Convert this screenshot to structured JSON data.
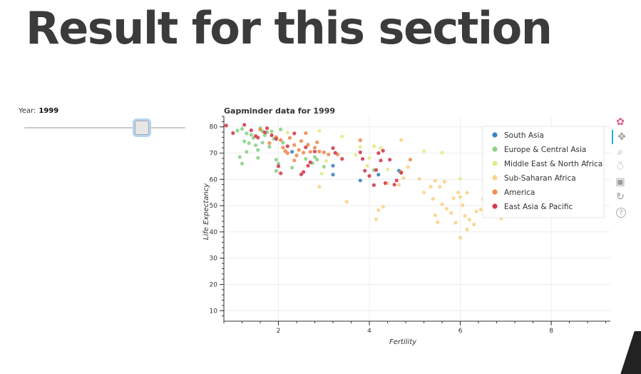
{
  "page": {
    "heading": "Result for this section"
  },
  "slider": {
    "label": "Year:",
    "value": "1999",
    "fraction": 0.725
  },
  "toolbar": [
    {
      "icon": "bokeh-logo-icon"
    },
    {
      "icon": "pan-icon",
      "active": true
    },
    {
      "icon": "box-zoom-icon"
    },
    {
      "icon": "wheel-zoom-icon"
    },
    {
      "icon": "save-icon"
    },
    {
      "icon": "reset-icon"
    },
    {
      "icon": "help-icon"
    }
  ],
  "chart_data": {
    "type": "scatter",
    "title": "Gapminder data for 1999",
    "xlabel": "Fertility",
    "ylabel": "Life Expectancy",
    "xlim": [
      0.8,
      9.3
    ],
    "ylim": [
      6,
      84
    ],
    "xticks": [
      2,
      4,
      6,
      8
    ],
    "yticks": [
      10,
      20,
      30,
      40,
      50,
      60,
      70,
      80
    ],
    "grid": true,
    "legend_position": "top-right",
    "series": [
      {
        "name": "South Asia",
        "color": "#3a84c2",
        "points": [
          [
            2.3,
            70.5
          ],
          [
            3.2,
            65.2
          ],
          [
            3.2,
            61.8
          ],
          [
            3.8,
            59.6
          ],
          [
            4.2,
            61.8
          ],
          [
            4.65,
            63.3
          ]
        ]
      },
      {
        "name": "Europe & Central Asia",
        "color": "#8ed08a",
        "points": [
          [
            1.1,
            78.6
          ],
          [
            1.2,
            79.2
          ],
          [
            1.3,
            77.5
          ],
          [
            1.25,
            74.5
          ],
          [
            1.3,
            70.5
          ],
          [
            1.15,
            68.5
          ],
          [
            1.4,
            77.0
          ],
          [
            1.45,
            75.8
          ],
          [
            1.5,
            73.0
          ],
          [
            1.55,
            71.2
          ],
          [
            1.6,
            79.5
          ],
          [
            1.65,
            74.0
          ],
          [
            1.7,
            76.8
          ],
          [
            1.75,
            77.9
          ],
          [
            1.8,
            72.4
          ],
          [
            1.85,
            78.3
          ],
          [
            1.9,
            75.5
          ],
          [
            1.95,
            67.5
          ],
          [
            2.0,
            66.0
          ],
          [
            2.05,
            79.0
          ],
          [
            1.2,
            66.0
          ],
          [
            1.35,
            73.8
          ],
          [
            1.55,
            68.2
          ],
          [
            1.65,
            78.3
          ],
          [
            2.1,
            74.0
          ],
          [
            2.3,
            64.5
          ],
          [
            1.95,
            63.2
          ],
          [
            2.6,
            67.8
          ],
          [
            2.8,
            68.5
          ],
          [
            2.85,
            67.5
          ],
          [
            2.75,
            66.2
          ],
          [
            3.0,
            64.8
          ],
          [
            4.1,
            63.5
          ]
        ]
      },
      {
        "name": "Middle East & North Africa",
        "color": "#e3eb8b",
        "points": [
          [
            2.2,
            77.8
          ],
          [
            2.9,
            78.5
          ],
          [
            3.4,
            76.3
          ],
          [
            3.8,
            72.4
          ],
          [
            3.7,
            69.3
          ],
          [
            4.0,
            68.2
          ],
          [
            4.1,
            72.6
          ],
          [
            4.25,
            71.9
          ],
          [
            3.95,
            65.1
          ],
          [
            4.4,
            63.8
          ],
          [
            5.2,
            70.8
          ],
          [
            5.6,
            70.2
          ],
          [
            6.0,
            60.3
          ],
          [
            3.05,
            67.0
          ],
          [
            2.95,
            62.2
          ]
        ]
      },
      {
        "name": "Sub-Saharan Africa",
        "color": "#fbd38d",
        "points": [
          [
            2.9,
            57.2
          ],
          [
            3.5,
            51.5
          ],
          [
            4.2,
            48.3
          ],
          [
            4.15,
            44.8
          ],
          [
            4.3,
            49.6
          ],
          [
            4.4,
            58.5
          ],
          [
            4.65,
            57.9
          ],
          [
            4.75,
            60.5
          ],
          [
            5.1,
            60.2
          ],
          [
            5.2,
            55.0
          ],
          [
            5.35,
            57.2
          ],
          [
            5.4,
            52.6
          ],
          [
            5.45,
            46.3
          ],
          [
            5.5,
            43.7
          ],
          [
            5.55,
            57.2
          ],
          [
            5.6,
            50.5
          ],
          [
            5.7,
            48.8
          ],
          [
            5.8,
            47.2
          ],
          [
            5.85,
            52.8
          ],
          [
            5.9,
            43.5
          ],
          [
            5.95,
            55.0
          ],
          [
            6.0,
            53.3
          ],
          [
            6.05,
            50.2
          ],
          [
            6.1,
            46.1
          ],
          [
            6.15,
            54.9
          ],
          [
            6.2,
            44.7
          ],
          [
            6.3,
            42.8
          ],
          [
            6.35,
            47.8
          ],
          [
            6.45,
            48.5
          ],
          [
            6.5,
            52.4
          ],
          [
            6.6,
            49.8
          ],
          [
            6.75,
            46.3
          ],
          [
            6.9,
            45.1
          ],
          [
            7.0,
            48.6
          ],
          [
            6.0,
            37.8
          ],
          [
            6.15,
            40.9
          ],
          [
            4.7,
            75.0
          ],
          [
            5.45,
            59.5
          ],
          [
            5.65,
            59.1
          ],
          [
            4.85,
            64.7
          ]
        ]
      },
      {
        "name": "America",
        "color": "#f08c50",
        "points": [
          [
            1.6,
            79.0
          ],
          [
            1.8,
            73.8
          ],
          [
            1.95,
            76.1
          ],
          [
            2.05,
            75.0
          ],
          [
            2.1,
            72.1
          ],
          [
            2.15,
            70.8
          ],
          [
            2.2,
            70.0
          ],
          [
            2.35,
            73.1
          ],
          [
            2.4,
            69.1
          ],
          [
            2.45,
            71.2
          ],
          [
            2.55,
            70.2
          ],
          [
            2.5,
            74.6
          ],
          [
            2.6,
            77.6
          ],
          [
            2.65,
            73.2
          ],
          [
            2.7,
            70.5
          ],
          [
            2.8,
            72.1
          ],
          [
            2.85,
            74.1
          ],
          [
            2.9,
            70.6
          ],
          [
            3.0,
            70.3
          ],
          [
            3.1,
            69.5
          ],
          [
            3.3,
            69.5
          ],
          [
            3.8,
            74.9
          ],
          [
            4.7,
            62.8
          ],
          [
            4.9,
            67.5
          ],
          [
            2.25,
            75.8
          ],
          [
            2.35,
            67.2
          ]
        ]
      },
      {
        "name": "East Asia & Pacific",
        "color": "#d43d4f",
        "points": [
          [
            0.85,
            80.5
          ],
          [
            1.0,
            77.6
          ],
          [
            1.25,
            80.8
          ],
          [
            1.4,
            78.7
          ],
          [
            1.5,
            76.5
          ],
          [
            1.55,
            75.9
          ],
          [
            1.7,
            77.9
          ],
          [
            1.75,
            79.5
          ],
          [
            1.85,
            76.8
          ],
          [
            1.95,
            75.4
          ],
          [
            2.0,
            65.0
          ],
          [
            2.05,
            62.3
          ],
          [
            2.2,
            72.6
          ],
          [
            2.5,
            61.9
          ],
          [
            2.55,
            62.8
          ],
          [
            2.6,
            72.2
          ],
          [
            2.7,
            66.5
          ],
          [
            2.8,
            70.6
          ],
          [
            3.2,
            71.9
          ],
          [
            3.4,
            67.8
          ],
          [
            3.8,
            70.3
          ],
          [
            3.85,
            67.8
          ],
          [
            3.9,
            63.3
          ],
          [
            4.0,
            61.3
          ],
          [
            4.1,
            57.8
          ],
          [
            4.15,
            63.6
          ],
          [
            4.2,
            70.0
          ],
          [
            4.3,
            70.9
          ],
          [
            4.45,
            67.5
          ],
          [
            4.55,
            58.0
          ],
          [
            4.6,
            59.6
          ],
          [
            4.7,
            62.5
          ],
          [
            4.25,
            67.2
          ],
          [
            4.35,
            58.6
          ],
          [
            2.35,
            77.5
          ],
          [
            2.65,
            65.2
          ],
          [
            3.25,
            70.1
          ]
        ]
      }
    ]
  }
}
